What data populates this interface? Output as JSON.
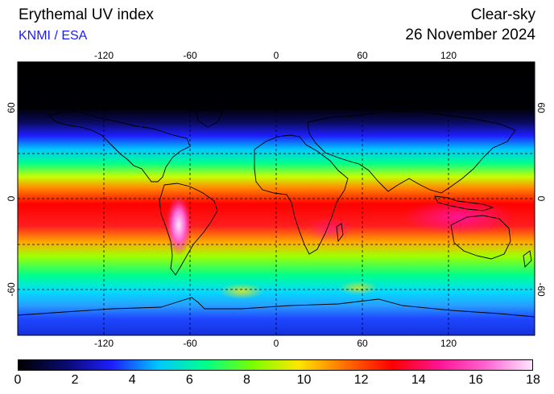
{
  "header": {
    "title": "Erythemal UV index",
    "credit": "KNMI / ESA",
    "mode": "Clear-sky",
    "date": "26 November 2024"
  },
  "map": {
    "projection": "equirectangular",
    "lon_ticks": [
      "-120",
      "-60",
      "0",
      "60",
      "120"
    ],
    "lat_ticks": [
      "60",
      "0",
      "-60"
    ],
    "grid": "dashed"
  },
  "colorbar": {
    "min": 0,
    "max": 18,
    "labels": [
      "0",
      "2",
      "4",
      "6",
      "8",
      "10",
      "12",
      "14",
      "16",
      "18"
    ],
    "colors": [
      "#000000",
      "#0a0a6e",
      "#1e1eff",
      "#00c8ff",
      "#00ff8c",
      "#78ff00",
      "#ffe600",
      "#ff6e00",
      "#ff0000",
      "#ff1493",
      "#ff64d2",
      "#ffe6ff"
    ]
  }
}
